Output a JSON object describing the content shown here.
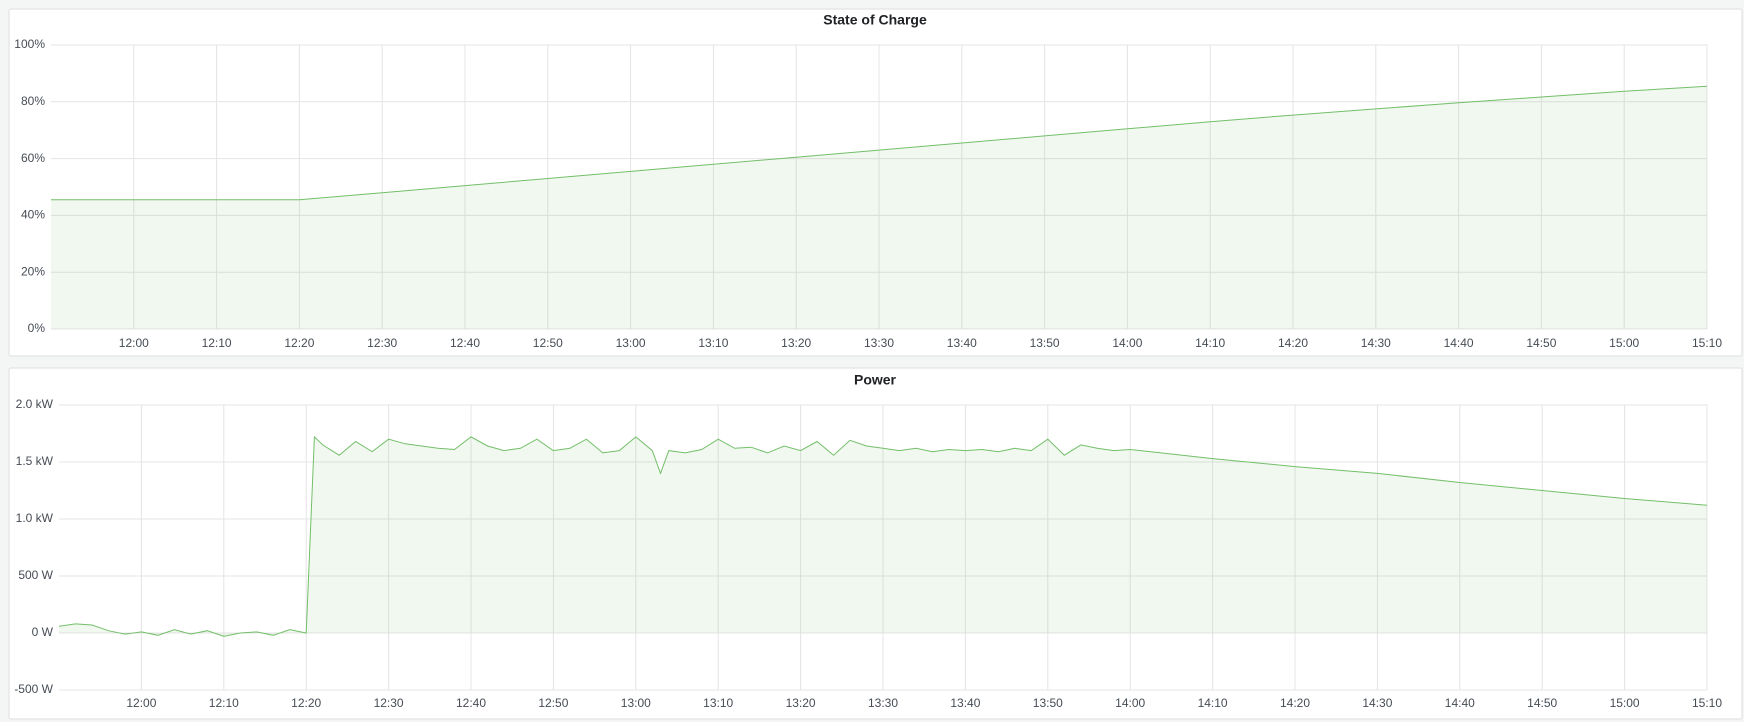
{
  "chart_data": [
    {
      "type": "line",
      "title": "State of Charge",
      "color": "#73bf69",
      "area": true,
      "grid": true,
      "x": [
        "11:50",
        "12:20",
        "12:30",
        "12:40",
        "12:50",
        "13:00",
        "13:10",
        "13:20",
        "13:30",
        "13:40",
        "13:50",
        "14:00",
        "14:10",
        "14:20",
        "14:30",
        "14:40",
        "14:50",
        "15:00",
        "15:10"
      ],
      "values": [
        45.5,
        45.5,
        48,
        50.5,
        53,
        55.5,
        58,
        60.5,
        63,
        65.5,
        68,
        70.5,
        73,
        75.3,
        77.5,
        79.7,
        81.7,
        83.7,
        85.5
      ],
      "xlim": [
        "11:50",
        "15:10"
      ],
      "xticks": [
        "12:00",
        "12:10",
        "12:20",
        "12:30",
        "12:40",
        "12:50",
        "13:00",
        "13:10",
        "13:20",
        "13:30",
        "13:40",
        "13:50",
        "14:00",
        "14:10",
        "14:20",
        "14:30",
        "14:40",
        "14:50",
        "15:00",
        "15:10"
      ],
      "ylim": [
        0,
        100
      ],
      "yticks": [
        {
          "value": 0,
          "label": "0%"
        },
        {
          "value": 20,
          "label": "20%"
        },
        {
          "value": 40,
          "label": "40%"
        },
        {
          "value": 60,
          "label": "60%"
        },
        {
          "value": 80,
          "label": "80%"
        },
        {
          "value": 100,
          "label": "100%"
        }
      ]
    },
    {
      "type": "line",
      "title": "Power",
      "color": "#73bf69",
      "area": true,
      "grid": true,
      "x": [
        "11:50",
        "11:52",
        "11:54",
        "11:56",
        "11:58",
        "12:00",
        "12:02",
        "12:04",
        "12:06",
        "12:08",
        "12:10",
        "12:12",
        "12:14",
        "12:16",
        "12:18",
        "12:20",
        "12:21",
        "12:22",
        "12:24",
        "12:26",
        "12:28",
        "12:30",
        "12:32",
        "12:34",
        "12:36",
        "12:38",
        "12:40",
        "12:42",
        "12:44",
        "12:46",
        "12:48",
        "12:50",
        "12:52",
        "12:54",
        "12:56",
        "12:58",
        "13:00",
        "13:02",
        "13:03",
        "13:04",
        "13:06",
        "13:08",
        "13:10",
        "13:12",
        "13:14",
        "13:16",
        "13:18",
        "13:20",
        "13:22",
        "13:24",
        "13:26",
        "13:28",
        "13:30",
        "13:32",
        "13:34",
        "13:36",
        "13:38",
        "13:40",
        "13:42",
        "13:44",
        "13:46",
        "13:48",
        "13:50",
        "13:52",
        "13:54",
        "13:56",
        "13:58",
        "14:00",
        "14:10",
        "14:20",
        "14:30",
        "14:40",
        "14:50",
        "15:00",
        "15:10"
      ],
      "values": [
        60,
        80,
        70,
        20,
        -10,
        10,
        -20,
        30,
        -10,
        20,
        -30,
        0,
        10,
        -20,
        30,
        0,
        1720,
        1650,
        1560,
        1680,
        1590,
        1700,
        1660,
        1640,
        1620,
        1610,
        1720,
        1640,
        1600,
        1620,
        1700,
        1600,
        1620,
        1700,
        1580,
        1600,
        1720,
        1600,
        1400,
        1600,
        1580,
        1610,
        1700,
        1620,
        1630,
        1580,
        1640,
        1600,
        1680,
        1560,
        1690,
        1640,
        1620,
        1600,
        1620,
        1590,
        1610,
        1600,
        1610,
        1590,
        1620,
        1600,
        1700,
        1560,
        1650,
        1620,
        1600,
        1610,
        1530,
        1460,
        1400,
        1320,
        1250,
        1180,
        1120
      ],
      "xlim": [
        "11:50",
        "15:10"
      ],
      "xticks": [
        "12:00",
        "12:10",
        "12:20",
        "12:30",
        "12:40",
        "12:50",
        "13:00",
        "13:10",
        "13:20",
        "13:30",
        "13:40",
        "13:50",
        "14:00",
        "14:10",
        "14:20",
        "14:30",
        "14:40",
        "14:50",
        "15:00",
        "15:10"
      ],
      "ylim": [
        -500,
        2000
      ],
      "yticks": [
        {
          "value": -500,
          "label": "-500 W"
        },
        {
          "value": 0,
          "label": "0 W"
        },
        {
          "value": 500,
          "label": "500 W"
        },
        {
          "value": 1000,
          "label": "1.0 kW"
        },
        {
          "value": 1500,
          "label": "1.5 kW"
        },
        {
          "value": 2000,
          "label": "2.0 kW"
        }
      ]
    }
  ]
}
